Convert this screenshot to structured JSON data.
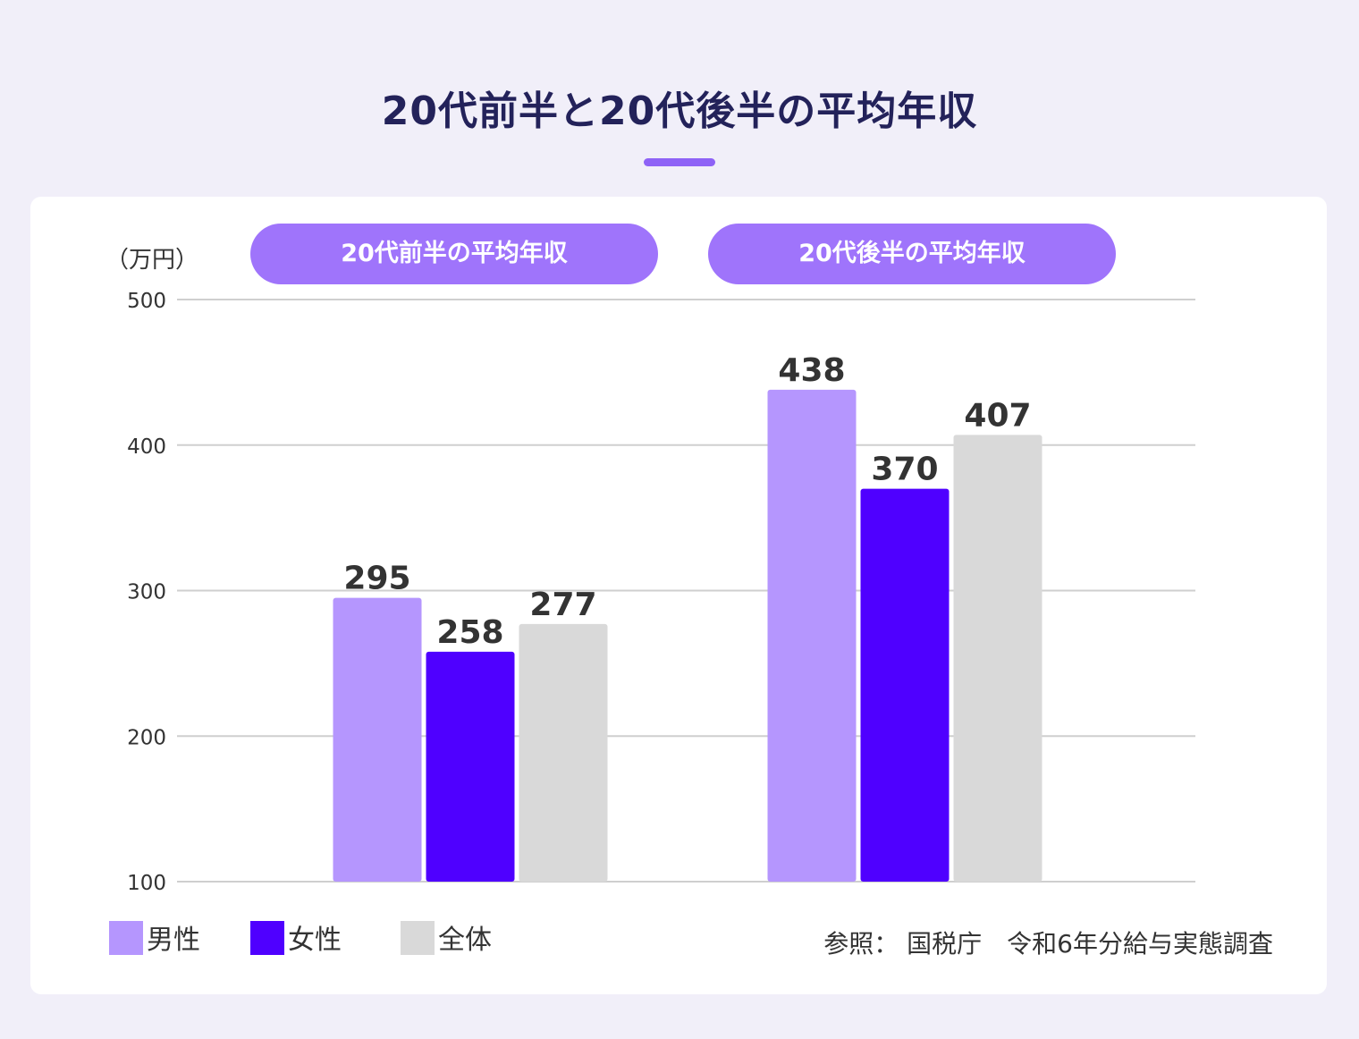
{
  "title": "20代前半と20代後半の平均年収",
  "unit_label": "（万円）",
  "source": "参照： 国税庁　令和6年分給与実態調査",
  "colors": {
    "male": "#b596fe",
    "female": "#4f00ff",
    "overall": "#d9d9d9",
    "accent": "#9f74fb"
  },
  "chart_data": {
    "type": "bar",
    "categories": [
      "20代前半の平均年収",
      "20代後半の平均年収"
    ],
    "series": [
      {
        "name": "男性",
        "values": [
          295,
          438
        ]
      },
      {
        "name": "女性",
        "values": [
          258,
          370
        ]
      },
      {
        "name": "全体",
        "values": [
          277,
          407
        ]
      }
    ],
    "ylim": [
      100,
      500
    ],
    "yticks": [
      500,
      400,
      300,
      200,
      100
    ],
    "grid": true,
    "legend_position": "bottom-left",
    "data_labels": true
  }
}
